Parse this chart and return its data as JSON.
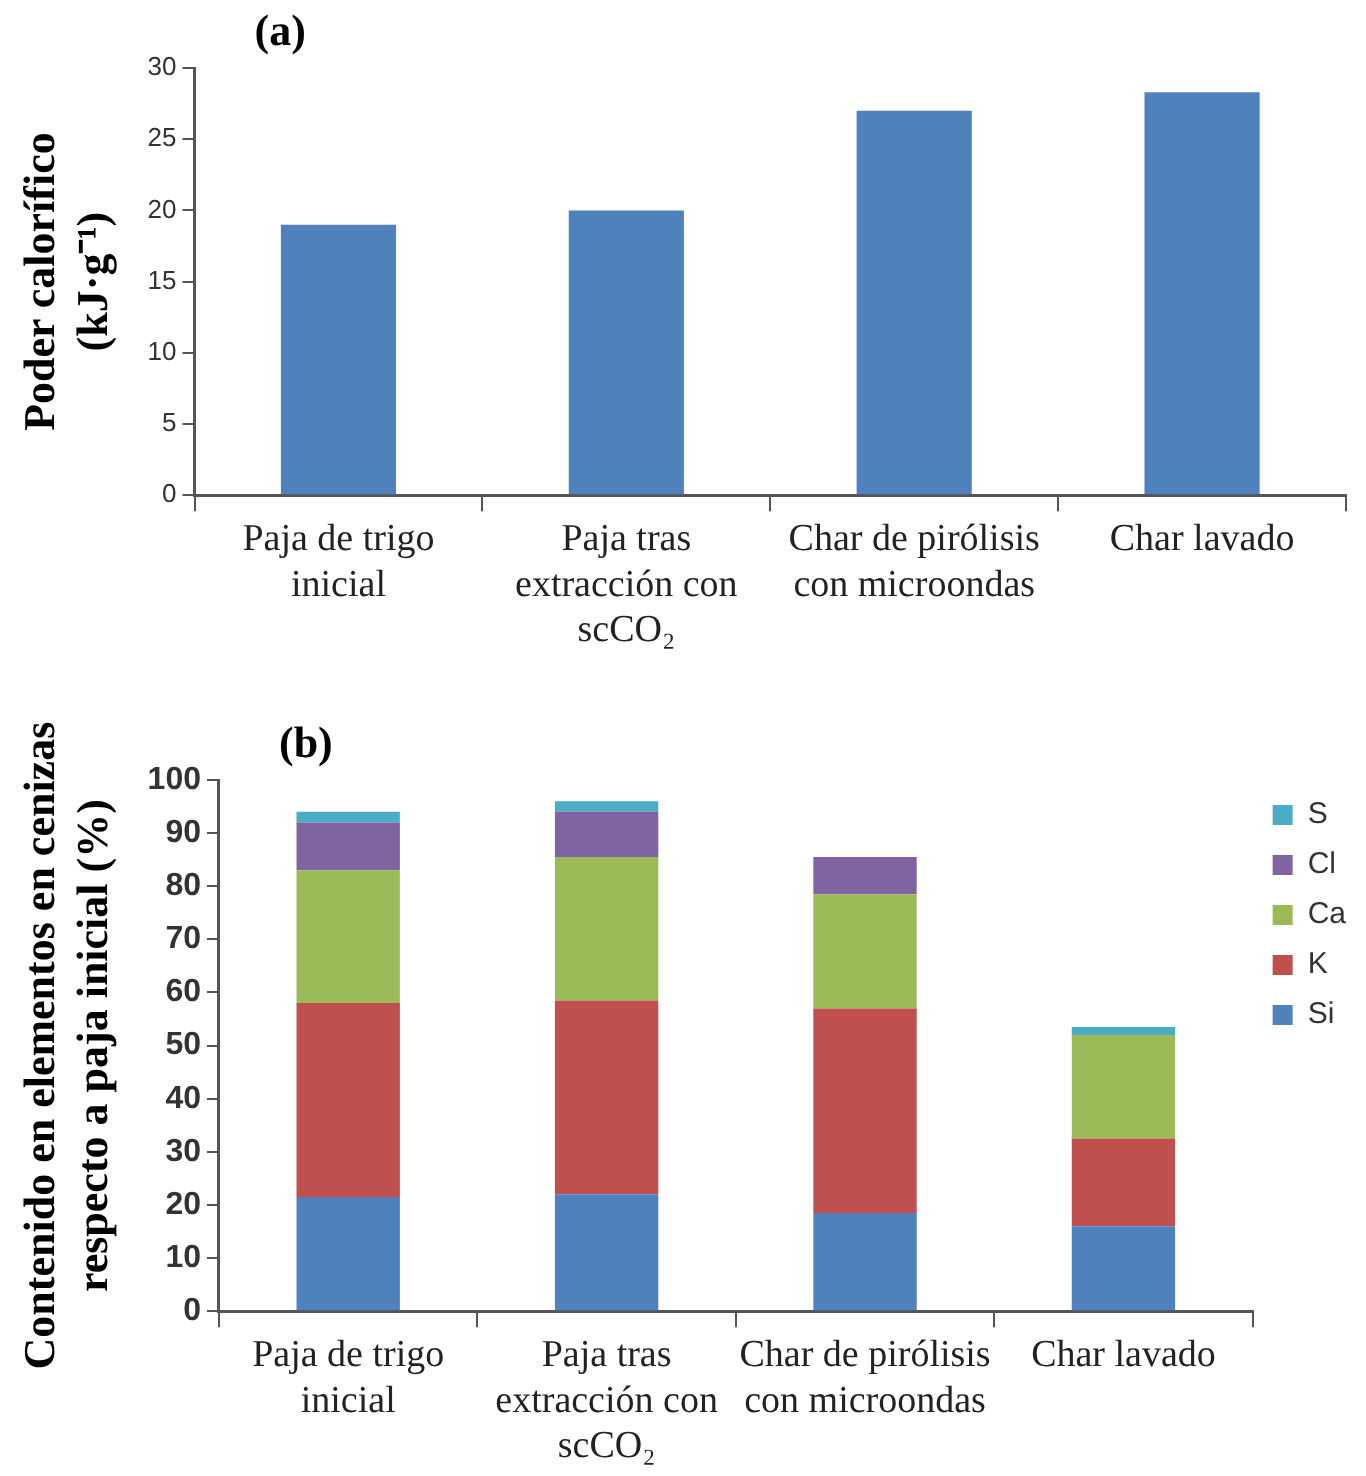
{
  "chart_data": [
    {
      "type": "bar",
      "title": "(a)",
      "ylabel": "Poder calorífico (kJ·g⁻¹)",
      "categories": [
        "Paja de trigo inicial",
        "Paja tras extracción con scCO₂",
        "Char de pirólisis con microondas",
        "Char lavado"
      ],
      "values": [
        19,
        20,
        27,
        28.3
      ],
      "color": "#4f81bd",
      "ylim": [
        0,
        30
      ],
      "yticks": [
        0,
        5,
        10,
        15,
        20,
        25,
        30
      ],
      "grid": false,
      "legend": false
    },
    {
      "type": "bar",
      "title": "(b)",
      "ylabel": "Contenido en elementos en cenizas respecto a paja inicial (%)",
      "categories": [
        "Paja de trigo inicial",
        "Paja tras extracción con scCO₂",
        "Char de pirólisis con microondas",
        "Char lavado"
      ],
      "stacked": true,
      "ylim": [
        0,
        100
      ],
      "yticks": [
        0,
        10,
        20,
        30,
        40,
        50,
        60,
        70,
        80,
        90,
        100
      ],
      "grid": false,
      "legend": "right",
      "series": [
        {
          "name": "Si",
          "color": "#4f81bd",
          "values": [
            21.5,
            22,
            18.5,
            16
          ]
        },
        {
          "name": "K",
          "color": "#c0504d",
          "values": [
            36.5,
            36.5,
            38.5,
            16.5
          ]
        },
        {
          "name": "Ca",
          "color": "#9bbb59",
          "values": [
            25,
            27,
            21.5,
            19.5
          ]
        },
        {
          "name": "Cl",
          "color": "#8064a2",
          "values": [
            9,
            8.5,
            7,
            0
          ]
        },
        {
          "name": "S",
          "color": "#4bacc6",
          "values": [
            2,
            2,
            0,
            1.5
          ]
        }
      ]
    }
  ]
}
